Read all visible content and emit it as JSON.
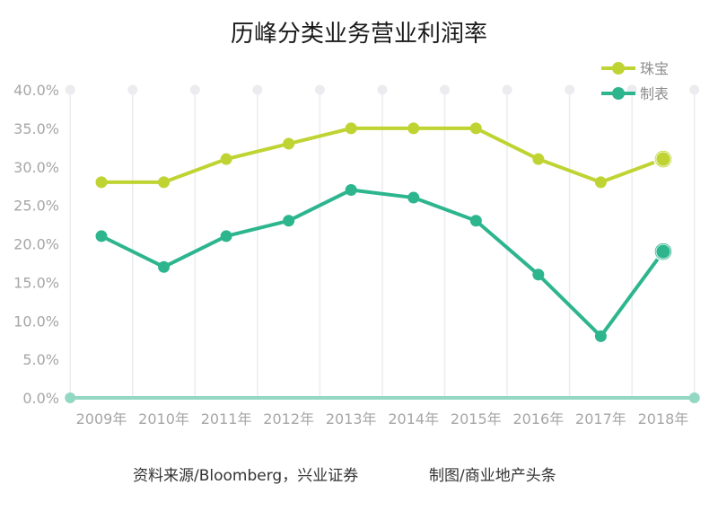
{
  "chart_data": {
    "type": "line",
    "title": "历峰分类业务营业利润率",
    "xlabel": "",
    "ylabel": "",
    "categories": [
      "2009年",
      "2010年",
      "2011年",
      "2012年",
      "2013年",
      "2014年",
      "2015年",
      "2016年",
      "2017年",
      "2018年"
    ],
    "series": [
      {
        "name": "珠宝",
        "color": "#bfd433",
        "values": [
          28,
          28,
          31,
          33,
          35,
          35,
          35,
          31,
          28,
          31
        ]
      },
      {
        "name": "制表",
        "color": "#2db58e",
        "values": [
          21,
          17,
          21,
          23,
          27,
          26,
          23,
          16,
          8,
          19
        ]
      }
    ],
    "yticks": [
      "0.0%",
      "5.0%",
      "10.0%",
      "15.0%",
      "20.0%",
      "25.0%",
      "30.0%",
      "35.0%",
      "40.0%"
    ],
    "ylim": [
      0,
      40
    ],
    "y_unit": "%",
    "grid": "vertical",
    "legend_position": "top-right",
    "axis_color": "#93d8c2",
    "grid_color": "#ececf0"
  },
  "footer": {
    "source": "资料来源/Bloomberg，兴业证券",
    "credit": "制图/商业地产头条"
  }
}
